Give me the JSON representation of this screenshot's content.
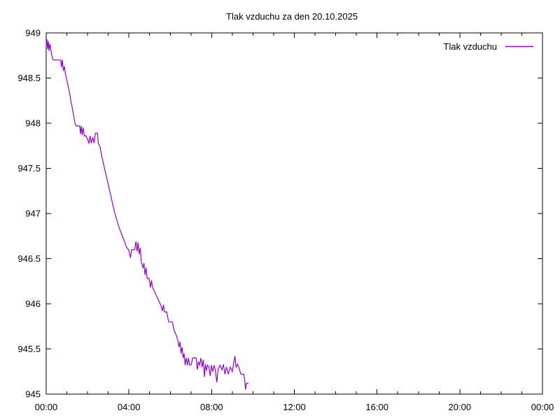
{
  "chart_data": {
    "type": "line",
    "title": "Tlak vzduchu za den 20.10.2025",
    "xlabel": "",
    "ylabel": "",
    "grid": false,
    "legend_position": "top-right-inside",
    "background": "#ffffff",
    "border_color": "#000000",
    "x_axis": {
      "range": [
        0,
        24
      ],
      "unit": "hours",
      "minor_tick_every": 1,
      "ticks": [
        {
          "h": 0,
          "label": "00:00"
        },
        {
          "h": 4,
          "label": "04:00"
        },
        {
          "h": 8,
          "label": "08:00"
        },
        {
          "h": 12,
          "label": "12:00"
        },
        {
          "h": 16,
          "label": "16:00"
        },
        {
          "h": 20,
          "label": "20:00"
        },
        {
          "h": 24,
          "label": "00:00"
        }
      ]
    },
    "y_axis": {
      "range": [
        945,
        949
      ],
      "ticks": [
        {
          "v": 949,
          "label": "949"
        },
        {
          "v": 948.5,
          "label": "948.5"
        },
        {
          "v": 948,
          "label": "948"
        },
        {
          "v": 947.5,
          "label": "947.5"
        },
        {
          "v": 947,
          "label": "947"
        },
        {
          "v": 946.5,
          "label": "946.5"
        },
        {
          "v": 946,
          "label": "946"
        },
        {
          "v": 945.5,
          "label": "945.5"
        },
        {
          "v": 945,
          "label": "945"
        }
      ]
    },
    "series": [
      {
        "name": "Tlak vzduchu",
        "color": "#9400d3",
        "points": [
          [
            0.0,
            948.88
          ],
          [
            0.03,
            948.93
          ],
          [
            0.07,
            948.82
          ],
          [
            0.1,
            948.91
          ],
          [
            0.14,
            948.8
          ],
          [
            0.18,
            948.88
          ],
          [
            0.22,
            948.82
          ],
          [
            0.28,
            948.74
          ],
          [
            0.34,
            948.7
          ],
          [
            0.7,
            948.7
          ],
          [
            0.74,
            948.62
          ],
          [
            0.78,
            948.7
          ],
          [
            0.83,
            948.58
          ],
          [
            0.88,
            948.63
          ],
          [
            0.93,
            948.55
          ],
          [
            1.0,
            948.48
          ],
          [
            1.07,
            948.4
          ],
          [
            1.14,
            948.32
          ],
          [
            1.2,
            948.24
          ],
          [
            1.27,
            948.16
          ],
          [
            1.33,
            948.08
          ],
          [
            1.39,
            948.0
          ],
          [
            1.45,
            947.97
          ],
          [
            1.62,
            947.97
          ],
          [
            1.66,
            947.88
          ],
          [
            1.7,
            947.97
          ],
          [
            1.74,
            947.87
          ],
          [
            1.79,
            947.95
          ],
          [
            1.84,
            947.86
          ],
          [
            1.93,
            947.86
          ],
          [
            2.0,
            947.82
          ],
          [
            2.07,
            947.78
          ],
          [
            2.12,
            947.86
          ],
          [
            2.18,
            947.78
          ],
          [
            2.25,
            947.84
          ],
          [
            2.32,
            947.78
          ],
          [
            2.38,
            947.89
          ],
          [
            2.48,
            947.89
          ],
          [
            2.52,
            947.78
          ],
          [
            2.6,
            947.74
          ],
          [
            2.7,
            947.62
          ],
          [
            2.8,
            947.52
          ],
          [
            2.9,
            947.42
          ],
          [
            3.0,
            947.32
          ],
          [
            3.1,
            947.22
          ],
          [
            3.2,
            947.12
          ],
          [
            3.3,
            947.02
          ],
          [
            3.4,
            946.94
          ],
          [
            3.5,
            946.86
          ],
          [
            3.6,
            946.8
          ],
          [
            3.7,
            946.74
          ],
          [
            3.8,
            946.68
          ],
          [
            3.9,
            946.62
          ],
          [
            3.98,
            946.6
          ],
          [
            4.08,
            946.51
          ],
          [
            4.13,
            946.6
          ],
          [
            4.28,
            946.6
          ],
          [
            4.34,
            946.69
          ],
          [
            4.4,
            946.58
          ],
          [
            4.44,
            946.68
          ],
          [
            4.5,
            946.55
          ],
          [
            4.55,
            946.62
          ],
          [
            4.6,
            946.46
          ],
          [
            4.68,
            946.4
          ],
          [
            4.73,
            946.45
          ],
          [
            4.78,
            946.32
          ],
          [
            4.83,
            946.4
          ],
          [
            4.88,
            946.28
          ],
          [
            4.98,
            946.28
          ],
          [
            5.04,
            946.18
          ],
          [
            5.09,
            946.26
          ],
          [
            5.15,
            946.18
          ],
          [
            5.25,
            946.13
          ],
          [
            5.35,
            946.08
          ],
          [
            5.45,
            946.03
          ],
          [
            5.55,
            945.98
          ],
          [
            5.62,
            945.92
          ],
          [
            5.67,
            945.99
          ],
          [
            5.72,
            945.91
          ],
          [
            5.83,
            945.91
          ],
          [
            5.92,
            945.8
          ],
          [
            6.1,
            945.8
          ],
          [
            6.18,
            945.71
          ],
          [
            6.28,
            945.66
          ],
          [
            6.36,
            945.6
          ],
          [
            6.42,
            945.52
          ],
          [
            6.47,
            945.58
          ],
          [
            6.52,
            945.45
          ],
          [
            6.57,
            945.52
          ],
          [
            6.62,
            945.4
          ],
          [
            6.67,
            945.45
          ],
          [
            6.72,
            945.32
          ],
          [
            6.77,
            945.4
          ],
          [
            6.83,
            945.32
          ],
          [
            6.88,
            945.4
          ],
          [
            6.94,
            945.32
          ],
          [
            7.02,
            945.33
          ],
          [
            7.08,
            945.4
          ],
          [
            7.25,
            945.4
          ],
          [
            7.31,
            945.27
          ],
          [
            7.36,
            945.36
          ],
          [
            7.42,
            945.32
          ],
          [
            7.48,
            945.4
          ],
          [
            7.54,
            945.3
          ],
          [
            7.6,
            945.38
          ],
          [
            7.65,
            945.19
          ],
          [
            7.7,
            945.33
          ],
          [
            7.75,
            945.26
          ],
          [
            7.8,
            945.32
          ],
          [
            7.87,
            945.3
          ],
          [
            7.93,
            945.2
          ],
          [
            7.99,
            945.32
          ],
          [
            8.05,
            945.25
          ],
          [
            8.12,
            945.32
          ],
          [
            8.18,
            945.26
          ],
          [
            8.25,
            945.13
          ],
          [
            8.32,
            945.28
          ],
          [
            8.4,
            945.32
          ],
          [
            8.5,
            945.27
          ],
          [
            8.57,
            945.33
          ],
          [
            8.64,
            945.22
          ],
          [
            8.72,
            945.3
          ],
          [
            8.8,
            945.22
          ],
          [
            8.9,
            945.3
          ],
          [
            9.0,
            945.25
          ],
          [
            9.08,
            945.36
          ],
          [
            9.13,
            945.42
          ],
          [
            9.18,
            945.3
          ],
          [
            9.25,
            945.33
          ],
          [
            9.32,
            945.29
          ],
          [
            9.42,
            945.22
          ],
          [
            9.55,
            945.22
          ],
          [
            9.6,
            945.16
          ],
          [
            9.64,
            945.05
          ],
          [
            9.68,
            945.12
          ],
          [
            9.78,
            945.12
          ]
        ]
      }
    ]
  }
}
